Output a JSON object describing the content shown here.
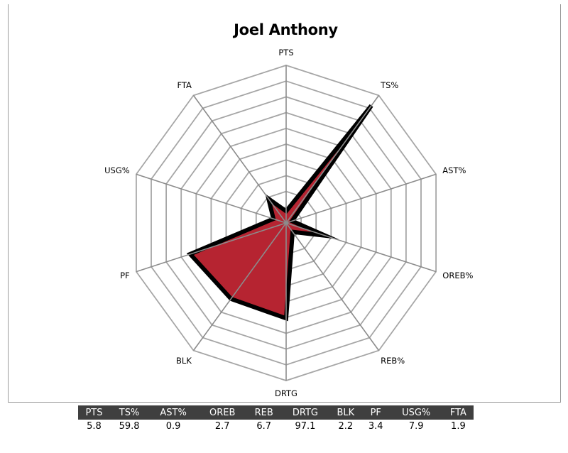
{
  "chart_data": {
    "type": "radar",
    "title": "Joel Anthony",
    "axes": [
      "PTS",
      "TS%",
      "AST%",
      "OREB%",
      "REB%",
      "DRTG",
      "BLK",
      "PF",
      "USG%",
      "FTA"
    ],
    "scale": [
      0,
      10
    ],
    "rings": 10,
    "series": [
      {
        "values": [
          0.75,
          9.2,
          0.4,
          2.6,
          0.7,
          6.05,
          5.95,
          6.4,
          0.85,
          1.9
        ],
        "fill": "#b62431",
        "outline": "#000000"
      }
    ],
    "grid": true
  },
  "table": {
    "headers": [
      "PTS",
      "TS%",
      "AST%",
      "OREB",
      "REB",
      "DRTG",
      "BLK",
      "PF",
      "USG%",
      "FTA"
    ],
    "values": [
      "5.8",
      "59.8",
      "0.9",
      "2.7",
      "6.7",
      "97.1",
      "2.2",
      "3.4",
      "7.9",
      "1.9"
    ]
  },
  "colors": {
    "grid": "#a6a6a6",
    "spoke": "#8c8c8c",
    "table_header_bg": "#3f3f3f"
  }
}
